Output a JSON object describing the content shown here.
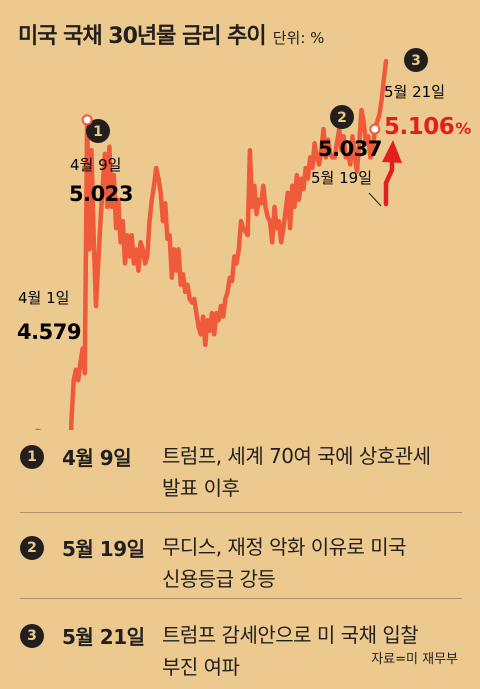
{
  "title": "미국 국채 30년물 금리 추이",
  "unit": "단위: %",
  "colors": {
    "line": "#ef5b3a",
    "accent": "#e41e1e",
    "text": "#231f1c",
    "background": "#ecc98f"
  },
  "chart_data": {
    "type": "line",
    "title": "미국 국채 30년물 금리 추이",
    "unit": "%",
    "grid": false,
    "ylim": [
      4.5,
      5.15
    ],
    "series": [
      {
        "values": [
          4.579,
          4.57,
          4.58,
          4.54,
          4.555,
          4.52,
          4.545,
          4.535,
          4.51,
          4.53,
          4.505,
          4.52,
          4.49,
          4.515,
          4.49,
          4.6,
          4.655,
          4.67,
          4.655,
          4.68,
          4.7,
          4.665,
          5.023,
          4.84,
          4.98,
          4.85,
          4.76,
          4.82,
          4.88,
          4.93,
          4.975,
          4.9,
          4.985,
          4.9,
          4.945,
          4.87,
          4.91,
          4.85,
          4.88,
          4.82,
          4.86,
          4.83,
          4.86,
          4.82,
          4.84,
          4.81,
          4.85,
          4.84,
          4.82,
          4.83,
          4.88,
          4.91,
          4.93,
          4.955,
          4.94,
          4.92,
          4.88,
          4.905,
          4.855,
          4.86,
          4.8,
          4.84,
          4.81,
          4.84,
          4.79,
          4.805,
          4.78,
          4.79,
          4.77,
          4.765,
          4.77,
          4.75,
          4.73,
          4.72,
          4.745,
          4.705,
          4.74,
          4.725,
          4.75,
          4.72,
          4.75,
          4.74,
          4.76,
          4.745,
          4.77,
          4.78,
          4.8,
          4.795,
          4.83,
          4.82,
          4.84,
          4.88,
          4.87,
          4.865,
          4.86,
          4.98,
          4.9,
          4.93,
          4.89,
          4.91,
          4.905,
          4.93,
          4.9,
          4.885,
          4.88,
          4.85,
          4.9,
          4.87,
          4.88,
          4.85,
          4.87,
          4.895,
          4.92,
          4.87,
          4.93,
          4.9,
          4.945,
          4.91,
          4.94,
          4.925,
          4.955,
          4.94,
          4.97,
          4.955,
          4.99,
          4.97,
          4.96,
          4.98,
          5.01,
          4.97,
          4.995,
          4.975,
          4.97,
          4.97,
          4.99,
          5.01,
          4.98,
          5.0,
          4.97,
          4.975,
          4.96,
          5.0,
          4.97,
          4.95,
          4.99,
          5.037,
          5.02,
          4.99,
          5.0,
          4.97,
          4.975,
          5.01,
          5.02,
          5.03,
          5.05,
          5.08,
          5.106
        ]
      }
    ],
    "annotations": [
      {
        "marker": "1",
        "date": "4월 9일",
        "value": "5.023"
      },
      {
        "marker": "2",
        "date": "5월 19일",
        "value": "5.037"
      },
      {
        "marker": "3",
        "date": "5월 21일",
        "value": "5.106",
        "suffix": "%"
      }
    ],
    "start": {
      "date": "4월 1일",
      "value": "4.579"
    }
  },
  "events": [
    {
      "num": "1",
      "date": "4월 9일",
      "line1": "트럼프, 세계 70여 국에 상호관세",
      "line2": "발표 이후"
    },
    {
      "num": "2",
      "date": "5월 19일",
      "line1": "무디스, 재정 악화 이유로 미국",
      "line2": "신용등급 강등"
    },
    {
      "num": "3",
      "date": "5월 21일",
      "line1": "트럼프 감세안으로 미 국채 입찰",
      "line2": "부진 여파"
    }
  ],
  "source": "자료=미 재무부"
}
